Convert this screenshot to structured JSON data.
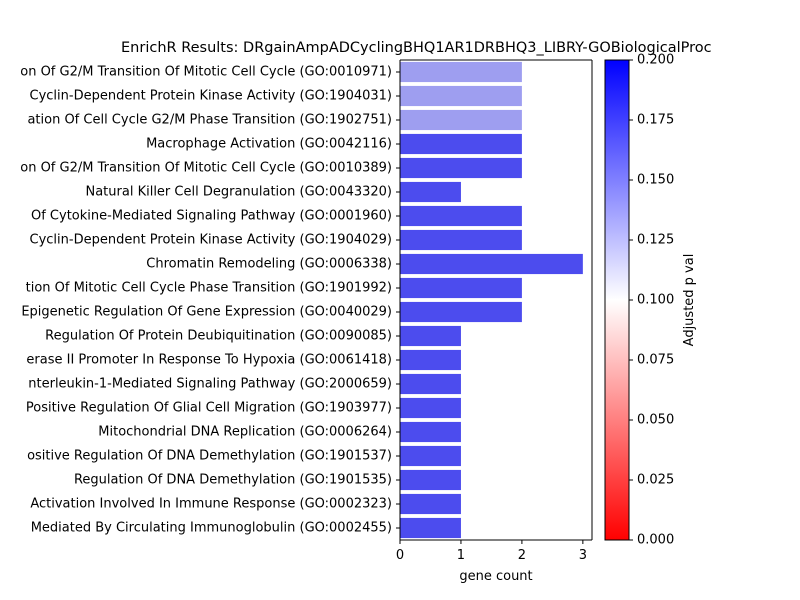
{
  "chart_data": {
    "type": "bar",
    "orientation": "horizontal",
    "title": "EnrichR Results: DRgainAmpADCyclingBHQ1AR1DRBHQ3_LIBRY-GOBiologicalProc",
    "xlabel": "gene count",
    "ylabel": "",
    "xlim": [
      0,
      3.15
    ],
    "xticks": [
      "0",
      "1",
      "2",
      "3"
    ],
    "grid": false,
    "categories": [
      "on Of G2/M Transition Of Mitotic Cell Cycle (GO:0010971)",
      "Cyclin-Dependent Protein Kinase Activity (GO:1904031)",
      "ation Of Cell Cycle G2/M Phase Transition (GO:1902751)",
      "Macrophage Activation (GO:0042116)",
      "on Of G2/M Transition Of Mitotic Cell Cycle (GO:0010389)",
      "Natural Killer Cell Degranulation (GO:0043320)",
      "Of Cytokine-Mediated Signaling Pathway (GO:0001960)",
      "Cyclin-Dependent Protein Kinase Activity (GO:1904029)",
      "Chromatin Remodeling (GO:0006338)",
      "tion Of Mitotic Cell Cycle Phase Transition (GO:1901992)",
      "Epigenetic Regulation Of Gene Expression (GO:0040029)",
      "Regulation Of Protein Deubiquitination (GO:0090085)",
      "erase II Promoter In Response To Hypoxia (GO:0061418)",
      "nterleukin-1-Mediated Signaling Pathway (GO:2000659)",
      "Positive Regulation Of Glial Cell Migration (GO:1903977)",
      "Mitochondrial DNA Replication (GO:0006264)",
      "ositive Regulation Of DNA Demethylation (GO:1901537)",
      "Regulation Of DNA Demethylation (GO:1901535)",
      "Activation Involved In Immune Response (GO:0002323)",
      "Mediated By Circulating Immunoglobulin (GO:0002455)"
    ],
    "values": [
      2,
      2,
      2,
      2,
      2,
      1,
      2,
      2,
      3,
      2,
      2,
      1,
      1,
      1,
      1,
      1,
      1,
      1,
      1,
      1
    ],
    "bar_colors": [
      "#9e9ef0",
      "#9e9ef0",
      "#9e9ef0",
      "#4c4cee",
      "#4c4cee",
      "#4c4cee",
      "#4c4cee",
      "#4c4cee",
      "#4c4cee",
      "#4c4cee",
      "#4c4cee",
      "#4c4cee",
      "#4c4cee",
      "#4c4cee",
      "#4c4cee",
      "#4c4cee",
      "#4c4cee",
      "#4c4cee",
      "#4c4cee",
      "#4c4cee"
    ],
    "colorbar": {
      "label": "Adjusted p val",
      "range": [
        0,
        0.2
      ],
      "ticks": [
        "0.000",
        "0.025",
        "0.050",
        "0.075",
        "0.100",
        "0.125",
        "0.150",
        "0.175",
        "0.200"
      ],
      "colormap": [
        "#ff0000",
        "#ffffff",
        "#0000ff"
      ]
    }
  }
}
